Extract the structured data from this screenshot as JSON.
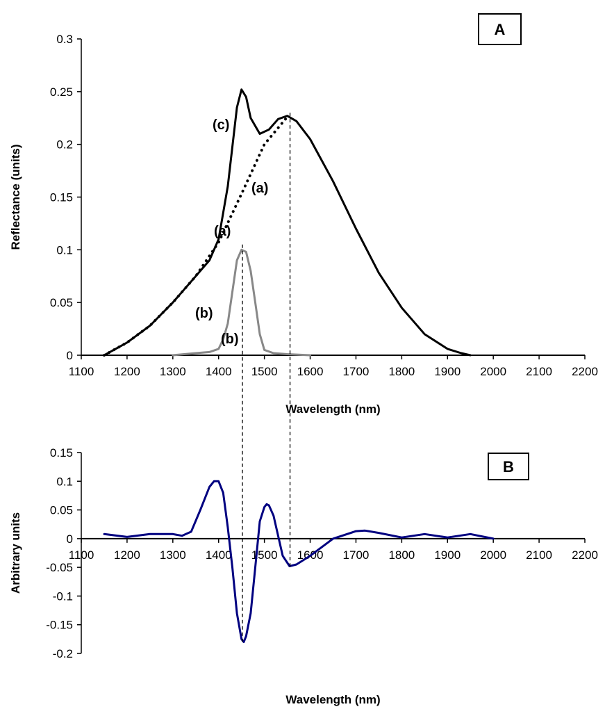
{
  "chart_data": [
    {
      "panel": "A",
      "type": "line",
      "xlabel": "Wavelength (nm)",
      "ylabel": "Reflectance (units)",
      "xlim": [
        1100,
        2200
      ],
      "ylim": [
        0,
        0.3
      ],
      "x_ticks": [
        1100,
        1200,
        1300,
        1400,
        1500,
        1600,
        1700,
        1800,
        1900,
        2000,
        2100,
        2200
      ],
      "y_ticks": [
        0,
        0.05,
        0.1,
        0.15,
        0.2,
        0.25,
        0.3
      ],
      "y_tick_labels": [
        "0",
        "0.05",
        "0.1",
        "0.15",
        "0.2",
        "0.25",
        "0.3"
      ],
      "grid": false,
      "series": [
        {
          "name": "(c)",
          "style": "solid",
          "color": "#000000",
          "x": [
            1150,
            1200,
            1250,
            1300,
            1350,
            1380,
            1400,
            1420,
            1440,
            1450,
            1460,
            1470,
            1490,
            1510,
            1530,
            1550,
            1570,
            1600,
            1650,
            1700,
            1750,
            1800,
            1850,
            1900,
            1930,
            1950
          ],
          "y": [
            0.0,
            0.012,
            0.028,
            0.05,
            0.075,
            0.09,
            0.11,
            0.16,
            0.235,
            0.252,
            0.245,
            0.225,
            0.21,
            0.214,
            0.224,
            0.227,
            0.222,
            0.205,
            0.165,
            0.12,
            0.078,
            0.045,
            0.02,
            0.006,
            0.002,
            0.0
          ]
        },
        {
          "name": "(a)",
          "style": "dotted",
          "color": "#000000",
          "x": [
            1150,
            1200,
            1250,
            1300,
            1350,
            1400,
            1450,
            1500,
            1550
          ],
          "y": [
            0.0,
            0.012,
            0.028,
            0.05,
            0.075,
            0.107,
            0.153,
            0.2,
            0.226
          ]
        },
        {
          "name": "(b)",
          "style": "solid",
          "color": "#888888",
          "x": [
            1300,
            1350,
            1380,
            1400,
            1410,
            1420,
            1430,
            1440,
            1450,
            1460,
            1470,
            1480,
            1490,
            1500,
            1520,
            1550,
            1600
          ],
          "y": [
            0.0,
            0.002,
            0.003,
            0.006,
            0.015,
            0.03,
            0.06,
            0.09,
            0.1,
            0.098,
            0.08,
            0.05,
            0.02,
            0.005,
            0.002,
            0.001,
            0.0
          ]
        }
      ],
      "annotations": [
        "(c)",
        "(a)",
        "(a)",
        "(b)",
        "(b)"
      ],
      "vertical_reference_lines": [
        1452,
        1556
      ],
      "panel_label": "A"
    },
    {
      "panel": "B",
      "type": "line",
      "xlabel": "Wavelength (nm)",
      "ylabel": "Arbitrary units",
      "xlim": [
        1100,
        2200
      ],
      "ylim": [
        -0.2,
        0.15
      ],
      "x_ticks": [
        1100,
        1200,
        1300,
        1400,
        1500,
        1600,
        1700,
        1800,
        1900,
        2000,
        2100,
        2200
      ],
      "y_ticks": [
        -0.2,
        -0.15,
        -0.1,
        -0.05,
        0,
        0.05,
        0.1,
        0.15
      ],
      "y_tick_labels": [
        "-0.2",
        "-0.15",
        "-0.1",
        "-0.05",
        "0",
        "0.05",
        "0.1",
        "0.15"
      ],
      "grid": false,
      "series": [
        {
          "name": "",
          "style": "solid",
          "color": "#000080",
          "x": [
            1150,
            1200,
            1250,
            1300,
            1320,
            1340,
            1360,
            1380,
            1390,
            1400,
            1410,
            1420,
            1430,
            1440,
            1450,
            1455,
            1460,
            1470,
            1480,
            1490,
            1500,
            1505,
            1510,
            1520,
            1530,
            1540,
            1555,
            1570,
            1600,
            1650,
            1700,
            1720,
            1750,
            1800,
            1850,
            1900,
            1950,
            2000
          ],
          "y": [
            0.008,
            0.003,
            0.008,
            0.008,
            0.005,
            0.012,
            0.05,
            0.09,
            0.1,
            0.1,
            0.08,
            0.02,
            -0.05,
            -0.13,
            -0.175,
            -0.18,
            -0.17,
            -0.13,
            -0.05,
            0.03,
            0.055,
            0.06,
            0.058,
            0.04,
            0.005,
            -0.03,
            -0.048,
            -0.045,
            -0.03,
            0.0,
            0.013,
            0.014,
            0.01,
            0.002,
            0.008,
            0.002,
            0.008,
            0.0
          ]
        }
      ],
      "vertical_reference_lines": [
        1452,
        1556
      ],
      "panel_label": "B"
    }
  ]
}
